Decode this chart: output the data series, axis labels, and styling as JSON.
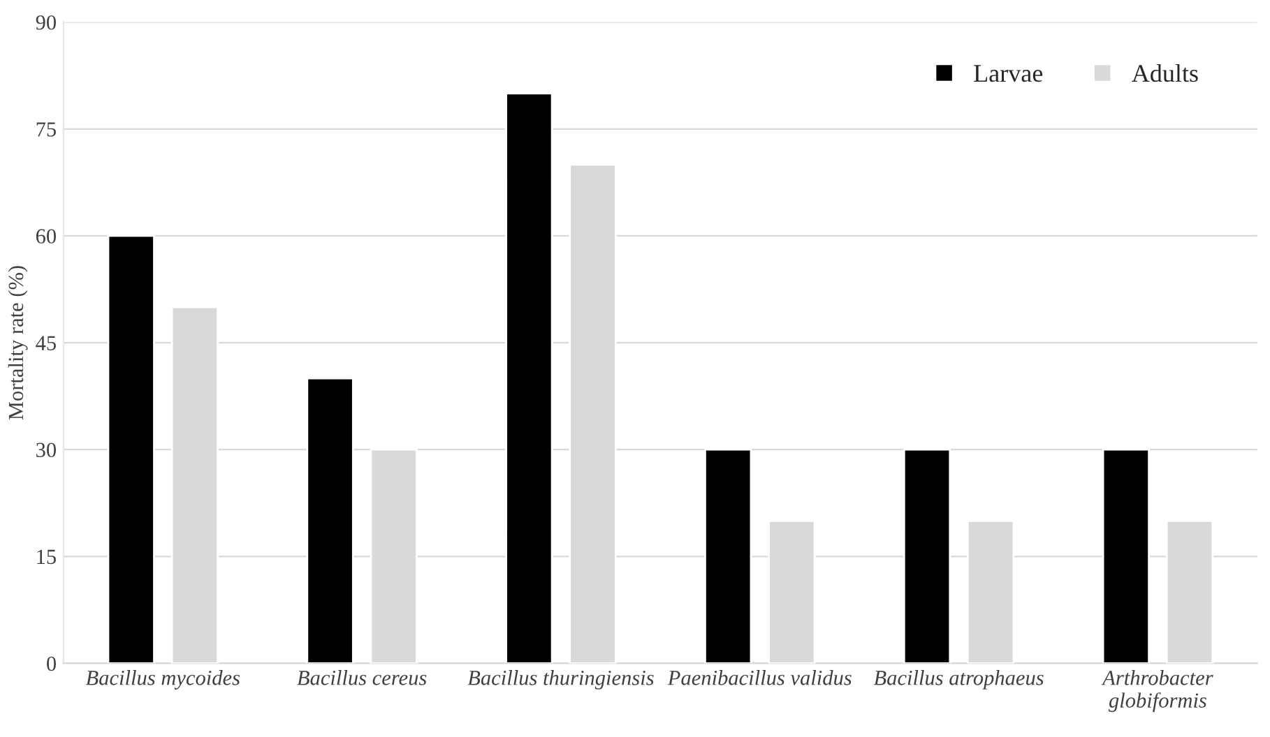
{
  "chart_data": {
    "type": "bar",
    "ylabel": "Mortality rate (%)",
    "categories": [
      "Bacillus mycoides",
      "Bacillus cereus",
      "Bacillus thuringiensis",
      "Paenibacillus validus",
      "Bacillus atrophaeus",
      "Arthrobacter globiformis"
    ],
    "series": [
      {
        "name": "Larvae",
        "color": "#000000",
        "values": [
          60,
          40,
          80,
          30,
          30,
          30
        ]
      },
      {
        "name": "Adults",
        "color": "#d9d9d9",
        "values": [
          50,
          30,
          70,
          20,
          20,
          20
        ]
      }
    ],
    "ylim": [
      0,
      90
    ],
    "yticks": [
      0,
      15,
      30,
      45,
      60,
      75,
      90
    ],
    "grid": "y",
    "legend": "top right"
  }
}
